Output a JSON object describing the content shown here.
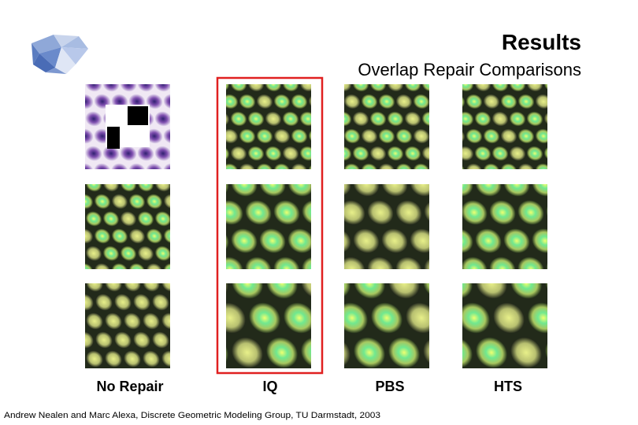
{
  "header": {
    "title": "Results",
    "subtitle": "Overlap Repair Comparisons"
  },
  "columns": [
    "No Repair",
    "IQ",
    "PBS",
    "HTS"
  ],
  "footer": "Andrew Nealen and Marc Alexa, Discrete Geometric Modeling Group, TU Darmstadt, 2003"
}
